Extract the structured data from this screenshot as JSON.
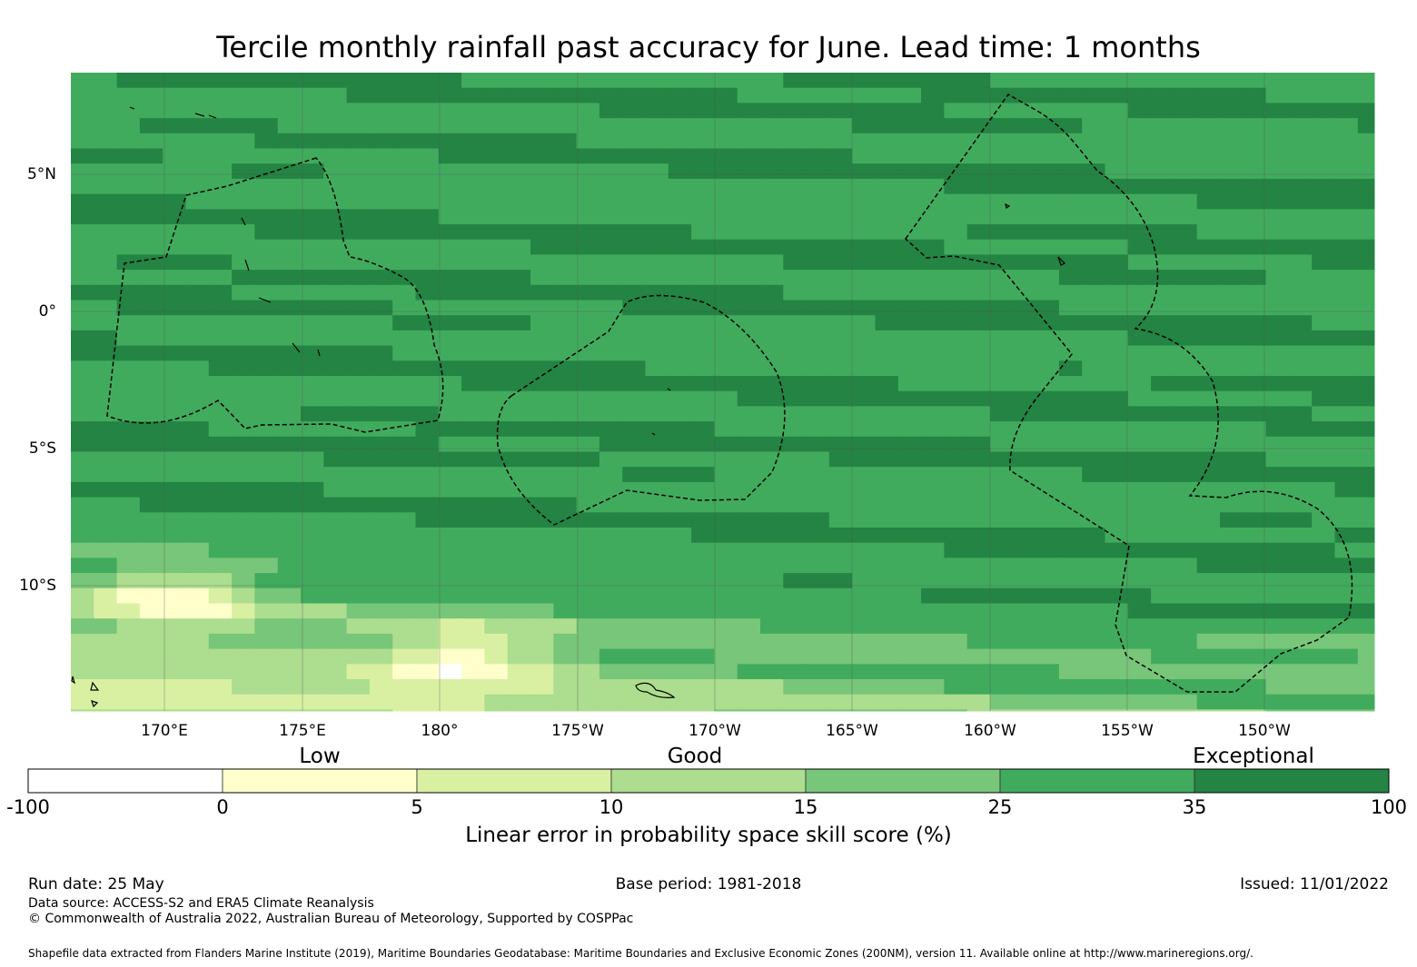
{
  "title": "Tercile monthly rainfall past accuracy for June. Lead time: 1 months",
  "map": {
    "lat_labels": [
      "5°N",
      "0°",
      "5°S",
      "10°S"
    ],
    "lon_labels": [
      "170°E",
      "175°E",
      "180°",
      "175°W",
      "170°W",
      "165°W",
      "160°W",
      "155°W",
      "150°W"
    ]
  },
  "colorbar": {
    "categories": [
      "Low",
      "Good",
      "Exceptional"
    ],
    "ticks": [
      "-100",
      "0",
      "5",
      "10",
      "15",
      "25",
      "35",
      "100"
    ],
    "colors": [
      "#ffffff",
      "#ffffcc",
      "#d9f0a3",
      "#addd8e",
      "#78c679",
      "#41ab5d",
      "#238443"
    ],
    "label": "Linear error in probability space skill score (%)"
  },
  "footer": {
    "run_date": "Run date: 25 May",
    "base_period": "Base period: 1981-2018",
    "issued": "Issued: 11/01/2022",
    "data_source": "Data source: ACCESS-S2 and ERA5 Climate Reanalysis",
    "copyright": "© Commonwealth of Australia 2022, Australian Bureau of Meteorology, Supported by COSPPac",
    "shapefile": "Shapefile data extracted from Flanders Marine Institute (2019), Maritime Boundaries Geodatabase: Maritime Boundaries and Exclusive Economic Zones (200NM), version 11. Available online at http://www.marineregions.org/."
  }
}
